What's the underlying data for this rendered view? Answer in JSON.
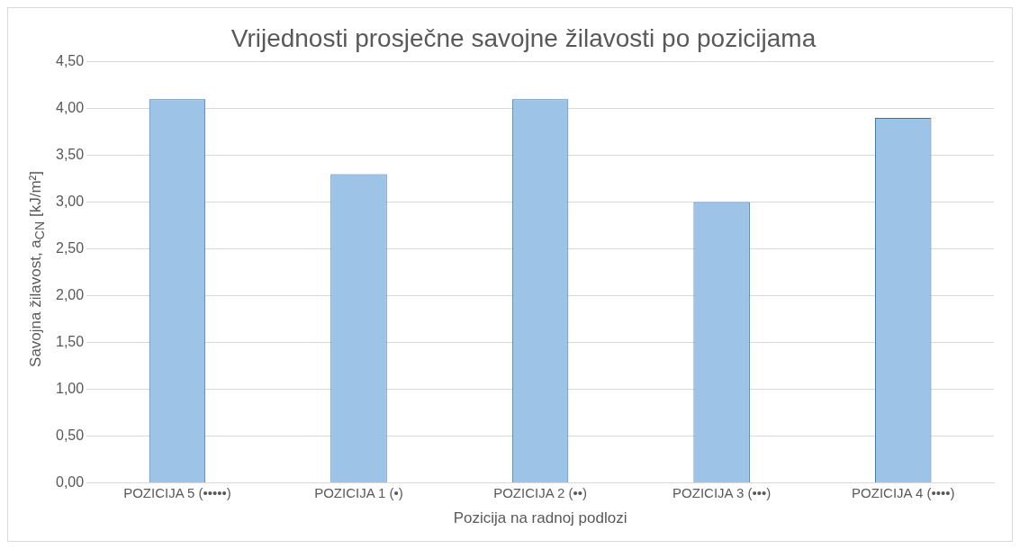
{
  "chart_data": {
    "type": "bar",
    "title": "Vrijednosti prosječne savojne žilavosti po pozicijama",
    "xlabel": "Pozicija na radnoj podlozi",
    "ylabel": "Savojna žilavost, a$_{CN}$ [kJ/m²]",
    "categories": [
      "POZICIJA 5 (•••••)",
      "POZICIJA 1 (•)",
      "POZICIJA 2 (••)",
      "POZICIJA 3 (•••)",
      "POZICIJA 4 (••••)"
    ],
    "values": [
      4.1,
      3.3,
      4.1,
      3.0,
      3.9
    ],
    "color": "#9dc3e6",
    "ylim": [
      0,
      4.5
    ],
    "yticks": [
      {
        "value": 0,
        "label": "0,00"
      },
      {
        "value": 0.5,
        "label": "0,50"
      },
      {
        "value": 1,
        "label": "1,00"
      },
      {
        "value": 1.5,
        "label": "1,50"
      },
      {
        "value": 2,
        "label": "2,00"
      },
      {
        "value": 2.5,
        "label": "2,50"
      },
      {
        "value": 3,
        "label": "3,00"
      },
      {
        "value": 3.5,
        "label": "3,50"
      },
      {
        "value": 4,
        "label": "4,00"
      },
      {
        "value": 4.5,
        "label": "4,50"
      }
    ],
    "grid": "y",
    "legend": false
  }
}
